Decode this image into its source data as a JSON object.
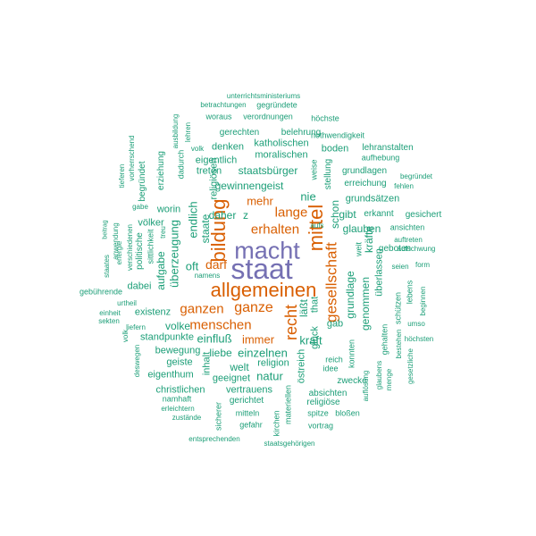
{
  "palette": {
    "top": "#7570b3",
    "high": "#d95f02",
    "low": "#1b9e77"
  },
  "words": [
    {
      "text": "staat",
      "tier": "top"
    },
    {
      "text": "macht",
      "tier": "top"
    },
    {
      "text": "allgemeinen",
      "tier": "high"
    },
    {
      "text": "bildung",
      "tier": "high"
    },
    {
      "text": "mittel",
      "tier": "high"
    },
    {
      "text": "gesellschaft",
      "tier": "high"
    },
    {
      "text": "recht",
      "tier": "high"
    },
    {
      "text": "ganze",
      "tier": "high"
    },
    {
      "text": "ganzen",
      "tier": "high"
    },
    {
      "text": "menschen",
      "tier": "high"
    },
    {
      "text": "erhalten",
      "tier": "high"
    },
    {
      "text": "lange",
      "tier": "high"
    },
    {
      "text": "darf",
      "tier": "high"
    },
    {
      "text": "mehr",
      "tier": "high"
    },
    {
      "text": "immer",
      "tier": "high"
    },
    {
      "text": "staatsbürger",
      "tier": "low"
    },
    {
      "text": "gewinnengeist",
      "tier": "low"
    },
    {
      "text": "endlich",
      "tier": "low"
    },
    {
      "text": "staate",
      "tier": "low"
    },
    {
      "text": "überzeugung",
      "tier": "low"
    },
    {
      "text": "aufgabe",
      "tier": "low"
    },
    {
      "text": "oft",
      "tier": "low"
    },
    {
      "text": "einfluß",
      "tier": "low"
    },
    {
      "text": "kraft",
      "tier": "low"
    },
    {
      "text": "einzelnen",
      "tier": "low"
    },
    {
      "text": "natur",
      "tier": "low"
    },
    {
      "text": "liebe",
      "tier": "low"
    },
    {
      "text": "welt",
      "tier": "low"
    },
    {
      "text": "grundlage",
      "tier": "low"
    },
    {
      "text": "genommen",
      "tier": "low"
    },
    {
      "text": "kräfte",
      "tier": "low"
    },
    {
      "text": "glauben",
      "tier": "low"
    },
    {
      "text": "schon",
      "tier": "low"
    },
    {
      "text": "gibt",
      "tier": "low"
    },
    {
      "text": "nie",
      "tier": "low"
    },
    {
      "text": "daher",
      "tier": "low"
    },
    {
      "text": "z",
      "tier": "low"
    },
    {
      "text": "läßt",
      "tier": "low"
    },
    {
      "text": "that",
      "tier": "low"
    },
    {
      "text": "volke",
      "tier": "low"
    },
    {
      "text": "religiösen",
      "tier": "low"
    },
    {
      "text": "überlassen",
      "tier": "low"
    },
    {
      "text": "gab",
      "tier": "low"
    },
    {
      "text": "worin",
      "tier": "low"
    },
    {
      "text": "völker",
      "tier": "low"
    },
    {
      "text": "dabei",
      "tier": "low"
    },
    {
      "text": "existenz",
      "tier": "low"
    },
    {
      "text": "standpunkte",
      "tier": "low"
    },
    {
      "text": "bewegung",
      "tier": "low"
    },
    {
      "text": "geiste",
      "tier": "low"
    },
    {
      "text": "eigenthum",
      "tier": "low"
    },
    {
      "text": "geeignet",
      "tier": "low"
    },
    {
      "text": "religion",
      "tier": "low"
    },
    {
      "text": "christlichen",
      "tier": "low"
    },
    {
      "text": "vertrauens",
      "tier": "low"
    },
    {
      "text": "inhalt",
      "tier": "low"
    },
    {
      "text": "zwecke",
      "tier": "low"
    },
    {
      "text": "glück",
      "tier": "low"
    },
    {
      "text": "östreich",
      "tier": "low"
    },
    {
      "text": "grundsätzen",
      "tier": "low"
    },
    {
      "text": "erkannt",
      "tier": "low"
    },
    {
      "text": "gesichert",
      "tier": "low"
    },
    {
      "text": "erreichung",
      "tier": "low"
    },
    {
      "text": "grundlagen",
      "tier": "low"
    },
    {
      "text": "stellung",
      "tier": "low"
    },
    {
      "text": "eigentlich",
      "tier": "low"
    },
    {
      "text": "treten",
      "tier": "low"
    },
    {
      "text": "denken",
      "tier": "low"
    },
    {
      "text": "katholischen",
      "tier": "low"
    },
    {
      "text": "moralischen",
      "tier": "low"
    },
    {
      "text": "belehrung",
      "tier": "low"
    },
    {
      "text": "gerechten",
      "tier": "low"
    },
    {
      "text": "boden",
      "tier": "low"
    },
    {
      "text": "lehranstalten",
      "tier": "low"
    },
    {
      "text": "aufhebung",
      "tier": "low"
    },
    {
      "text": "nothwendigkeit",
      "tier": "low"
    },
    {
      "text": "höchste",
      "tier": "low"
    },
    {
      "text": "verordnungen",
      "tier": "low"
    },
    {
      "text": "woraus",
      "tier": "low"
    },
    {
      "text": "betrachtungen",
      "tier": "low"
    },
    {
      "text": "gegründete",
      "tier": "low"
    },
    {
      "text": "unterrichtsministeriums",
      "tier": "low"
    },
    {
      "text": "weise",
      "tier": "low"
    },
    {
      "text": "begründet",
      "tier": "low"
    },
    {
      "text": "fehlen",
      "tier": "low"
    },
    {
      "text": "geboten",
      "tier": "low"
    },
    {
      "text": "ansichten",
      "tier": "low"
    },
    {
      "text": "auftreten",
      "tier": "low"
    },
    {
      "text": "aufschwung",
      "tier": "low"
    },
    {
      "text": "seien",
      "tier": "low"
    },
    {
      "text": "form",
      "tier": "low"
    },
    {
      "text": "weit",
      "tier": "low"
    },
    {
      "text": "lebens",
      "tier": "low"
    },
    {
      "text": "beginnen",
      "tier": "low"
    },
    {
      "text": "umso",
      "tier": "low"
    },
    {
      "text": "schützen",
      "tier": "low"
    },
    {
      "text": "höchsten",
      "tier": "low"
    },
    {
      "text": "bestehen",
      "tier": "low"
    },
    {
      "text": "gesetzliche",
      "tier": "low"
    },
    {
      "text": "gehalten",
      "tier": "low"
    },
    {
      "text": "glaubens",
      "tier": "low"
    },
    {
      "text": "menge",
      "tier": "low"
    },
    {
      "text": "auflösung",
      "tier": "low"
    },
    {
      "text": "konnten",
      "tier": "low"
    },
    {
      "text": "idee",
      "tier": "low"
    },
    {
      "text": "reich",
      "tier": "low"
    },
    {
      "text": "absichten",
      "tier": "low"
    },
    {
      "text": "religiöse",
      "tier": "low"
    },
    {
      "text": "spitze",
      "tier": "low"
    },
    {
      "text": "bloßen",
      "tier": "low"
    },
    {
      "text": "vortrag",
      "tier": "low"
    },
    {
      "text": "materiellen",
      "tier": "low"
    },
    {
      "text": "kirchen",
      "tier": "low"
    },
    {
      "text": "gerichtet",
      "tier": "low"
    },
    {
      "text": "mitteln",
      "tier": "low"
    },
    {
      "text": "gefahr",
      "tier": "low"
    },
    {
      "text": "sicherer",
      "tier": "low"
    },
    {
      "text": "namhaft",
      "tier": "low"
    },
    {
      "text": "erleichtern",
      "tier": "low"
    },
    {
      "text": "zustände",
      "tier": "low"
    },
    {
      "text": "entsprechenden",
      "tier": "low"
    },
    {
      "text": "staatsgehörigen",
      "tier": "low"
    },
    {
      "text": "gebührende",
      "tier": "low"
    },
    {
      "text": "einheit",
      "tier": "low"
    },
    {
      "text": "sekten",
      "tier": "low"
    },
    {
      "text": "urtheil",
      "tier": "low"
    },
    {
      "text": "liefern",
      "tier": "low"
    },
    {
      "text": "volk",
      "tier": "low"
    },
    {
      "text": "deswegen",
      "tier": "low"
    },
    {
      "text": "staates",
      "tier": "low"
    },
    {
      "text": "anwendung",
      "tier": "low"
    },
    {
      "text": "energie",
      "tier": "low"
    },
    {
      "text": "beitrag",
      "tier": "low"
    },
    {
      "text": "verschiedenen",
      "tier": "low"
    },
    {
      "text": "politische",
      "tier": "low"
    },
    {
      "text": "sittlichkeit",
      "tier": "low"
    },
    {
      "text": "gabe",
      "tier": "low"
    },
    {
      "text": "treu",
      "tier": "low"
    },
    {
      "text": "namens",
      "tier": "low"
    },
    {
      "text": "erziehung",
      "tier": "low"
    },
    {
      "text": "begründet",
      "tier": "low"
    },
    {
      "text": "vorherrschend",
      "tier": "low"
    },
    {
      "text": "tieferen",
      "tier": "low"
    },
    {
      "text": "ausbildung",
      "tier": "low"
    },
    {
      "text": "dadurch",
      "tier": "low"
    },
    {
      "text": "lehren",
      "tier": "low"
    },
    {
      "text": "volk",
      "tier": "low"
    },
    {
      "text": "aufs",
      "tier": "low"
    }
  ]
}
